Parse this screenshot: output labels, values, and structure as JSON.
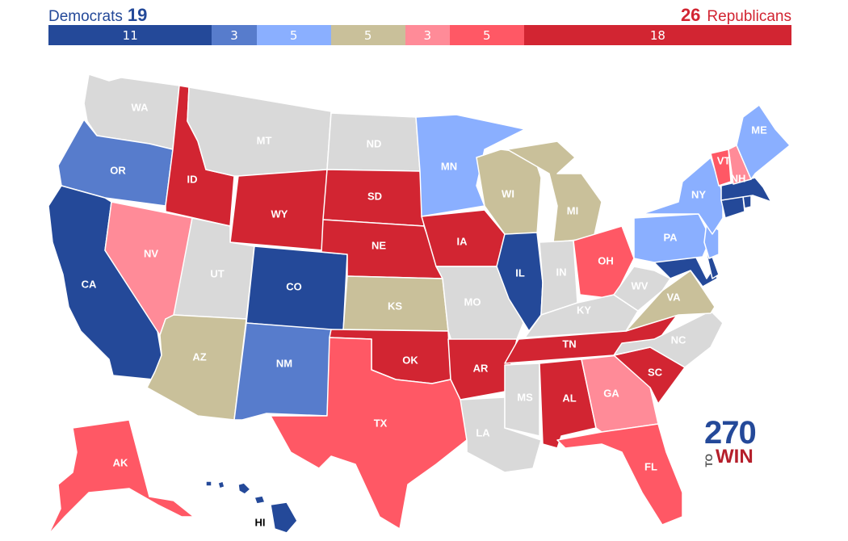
{
  "header": {
    "dem_label": "Democrats",
    "dem_total": "19",
    "rep_label": "Republicans",
    "rep_total": "26"
  },
  "bar_segments": [
    {
      "value": 11,
      "label": "11",
      "color": "#244999",
      "category": "safe-dem"
    },
    {
      "value": 3,
      "label": "3",
      "color": "#577ccc",
      "category": "likely-dem"
    },
    {
      "value": 5,
      "label": "5",
      "color": "#8aafff",
      "category": "leans-dem"
    },
    {
      "value": 5,
      "label": "5",
      "color": "#c9c09a",
      "category": "tossup"
    },
    {
      "value": 3,
      "label": "3",
      "color": "#ff8b98",
      "category": "leans-rep"
    },
    {
      "value": 5,
      "label": "5",
      "color": "#ff5865",
      "category": "likely-rep"
    },
    {
      "value": 18,
      "label": "18",
      "color": "#d22532",
      "category": "safe-rep"
    }
  ],
  "colors": {
    "safe-dem": "#244999",
    "likely-dem": "#577ccc",
    "leans-dem": "#8aafff",
    "tossup": "#c9c09a",
    "leans-rep": "#ff8b98",
    "likely-rep": "#ff5865",
    "safe-rep": "#d22532",
    "none": "#d9d9d9"
  },
  "states": [
    {
      "id": "WA",
      "label": "WA",
      "cat": "none"
    },
    {
      "id": "OR",
      "label": "OR",
      "cat": "likely-dem"
    },
    {
      "id": "CA",
      "label": "CA",
      "cat": "safe-dem"
    },
    {
      "id": "NV",
      "label": "NV",
      "cat": "leans-rep"
    },
    {
      "id": "ID",
      "label": "ID",
      "cat": "safe-rep"
    },
    {
      "id": "MT",
      "label": "MT",
      "cat": "none"
    },
    {
      "id": "WY",
      "label": "WY",
      "cat": "safe-rep"
    },
    {
      "id": "UT",
      "label": "UT",
      "cat": "none"
    },
    {
      "id": "AZ",
      "label": "AZ",
      "cat": "tossup"
    },
    {
      "id": "CO",
      "label": "CO",
      "cat": "safe-dem"
    },
    {
      "id": "NM",
      "label": "NM",
      "cat": "likely-dem"
    },
    {
      "id": "ND",
      "label": "ND",
      "cat": "none"
    },
    {
      "id": "SD",
      "label": "SD",
      "cat": "safe-rep"
    },
    {
      "id": "NE",
      "label": "NE",
      "cat": "safe-rep"
    },
    {
      "id": "KS",
      "label": "KS",
      "cat": "tossup"
    },
    {
      "id": "OK",
      "label": "OK",
      "cat": "safe-rep"
    },
    {
      "id": "TX",
      "label": "TX",
      "cat": "likely-rep"
    },
    {
      "id": "MN",
      "label": "MN",
      "cat": "leans-dem"
    },
    {
      "id": "IA",
      "label": "IA",
      "cat": "safe-rep"
    },
    {
      "id": "MO",
      "label": "MO",
      "cat": "none"
    },
    {
      "id": "AR",
      "label": "AR",
      "cat": "safe-rep"
    },
    {
      "id": "LA",
      "label": "LA",
      "cat": "none"
    },
    {
      "id": "WI",
      "label": "WI",
      "cat": "tossup"
    },
    {
      "id": "IL",
      "label": "IL",
      "cat": "safe-dem"
    },
    {
      "id": "MI",
      "label": "MI",
      "cat": "tossup"
    },
    {
      "id": "IN",
      "label": "IN",
      "cat": "none"
    },
    {
      "id": "OH",
      "label": "OH",
      "cat": "likely-rep"
    },
    {
      "id": "KY",
      "label": "KY",
      "cat": "none"
    },
    {
      "id": "TN",
      "label": "TN",
      "cat": "safe-rep"
    },
    {
      "id": "MS",
      "label": "MS",
      "cat": "none"
    },
    {
      "id": "AL",
      "label": "AL",
      "cat": "safe-rep"
    },
    {
      "id": "GA",
      "label": "GA",
      "cat": "leans-rep"
    },
    {
      "id": "FL",
      "label": "FL",
      "cat": "likely-rep"
    },
    {
      "id": "SC",
      "label": "SC",
      "cat": "safe-rep"
    },
    {
      "id": "NC",
      "label": "NC",
      "cat": "none"
    },
    {
      "id": "VA",
      "label": "VA",
      "cat": "tossup"
    },
    {
      "id": "WV",
      "label": "WV",
      "cat": "none"
    },
    {
      "id": "MD",
      "label": "MD",
      "cat": "safe-dem"
    },
    {
      "id": "DE",
      "label": "",
      "cat": "safe-dem"
    },
    {
      "id": "PA",
      "label": "PA",
      "cat": "leans-dem"
    },
    {
      "id": "NJ",
      "label": "",
      "cat": "leans-dem"
    },
    {
      "id": "NY",
      "label": "NY",
      "cat": "leans-dem"
    },
    {
      "id": "CT",
      "label": "",
      "cat": "safe-dem"
    },
    {
      "id": "RI",
      "label": "",
      "cat": "safe-dem"
    },
    {
      "id": "MA",
      "label": "",
      "cat": "safe-dem"
    },
    {
      "id": "VT",
      "label": "VT",
      "cat": "likely-rep"
    },
    {
      "id": "NH",
      "label": "NH",
      "cat": "leans-rep"
    },
    {
      "id": "ME",
      "label": "ME",
      "cat": "leans-dem"
    },
    {
      "id": "AK",
      "label": "AK",
      "cat": "likely-rep"
    },
    {
      "id": "HI",
      "label": "HI",
      "cat": "safe-dem"
    }
  ],
  "logo": {
    "top": "270",
    "to": "TO",
    "win": "WIN"
  }
}
